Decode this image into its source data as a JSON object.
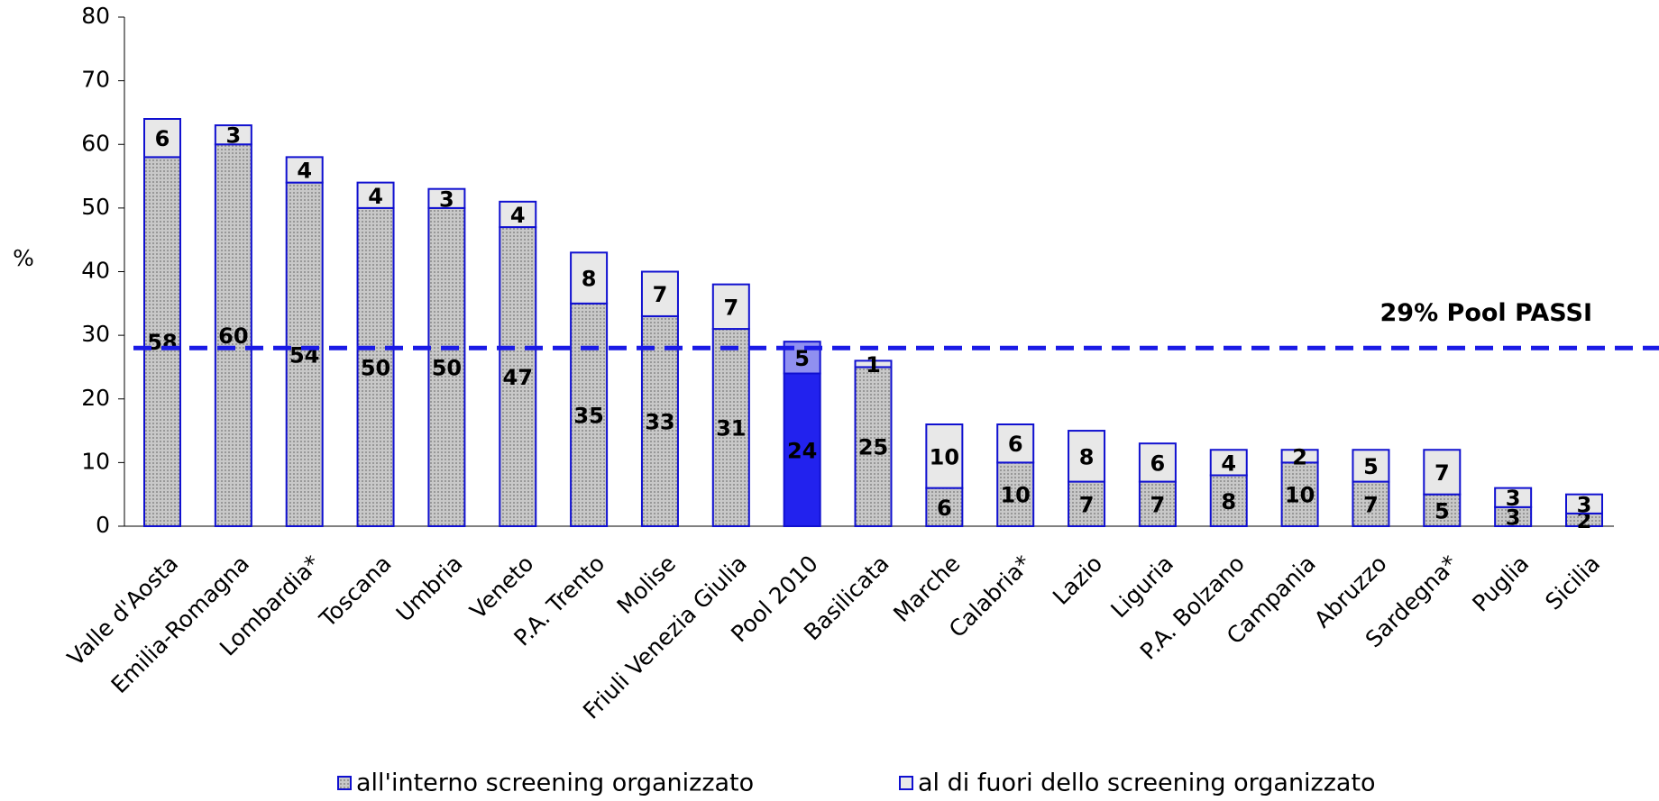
{
  "chart_data": {
    "type": "stacked_bar",
    "y_label": "%",
    "categories": [
      "Valle d'Aosta",
      "Emilia-Romagna",
      "Lombardia*",
      "Toscana",
      "Umbria",
      "Veneto",
      "P.A. Trento",
      "Molise",
      "Friuli Venezia Giulia",
      "Pool 2010",
      "Basilicata",
      "Marche",
      "Calabria*",
      "Lazio",
      "Liguria",
      "P.A. Bolzano",
      "Campania",
      "Abruzzo",
      "Sardegna*",
      "Puglia",
      "Sicilia"
    ],
    "series": [
      {
        "name": "all'interno screening organizzato",
        "color": "#b4b4b4",
        "values": [
          58,
          60,
          54,
          50,
          50,
          47,
          35,
          33,
          31,
          24,
          25,
          6,
          10,
          7,
          7,
          8,
          10,
          7,
          5,
          3,
          2
        ]
      },
      {
        "name": "al di fuori dello screening organizzato",
        "color": "#e8e8e8",
        "values": [
          6,
          3,
          4,
          4,
          3,
          4,
          8,
          7,
          7,
          5,
          1,
          10,
          6,
          8,
          6,
          4,
          2,
          5,
          7,
          3,
          3
        ]
      }
    ],
    "bar_edge_color": "#1010d0",
    "highlight_category": "Pool 2010",
    "highlight_colors": [
      "#2222ee",
      "#9090f0"
    ],
    "reference_line": {
      "value": 28,
      "color": "#1a1ae6"
    },
    "annotation": "29% Pool PASSI",
    "ylim": [
      0,
      80
    ],
    "yticks": [
      0,
      10,
      20,
      30,
      40,
      50,
      60,
      70,
      80
    ],
    "legend": "bottom"
  }
}
